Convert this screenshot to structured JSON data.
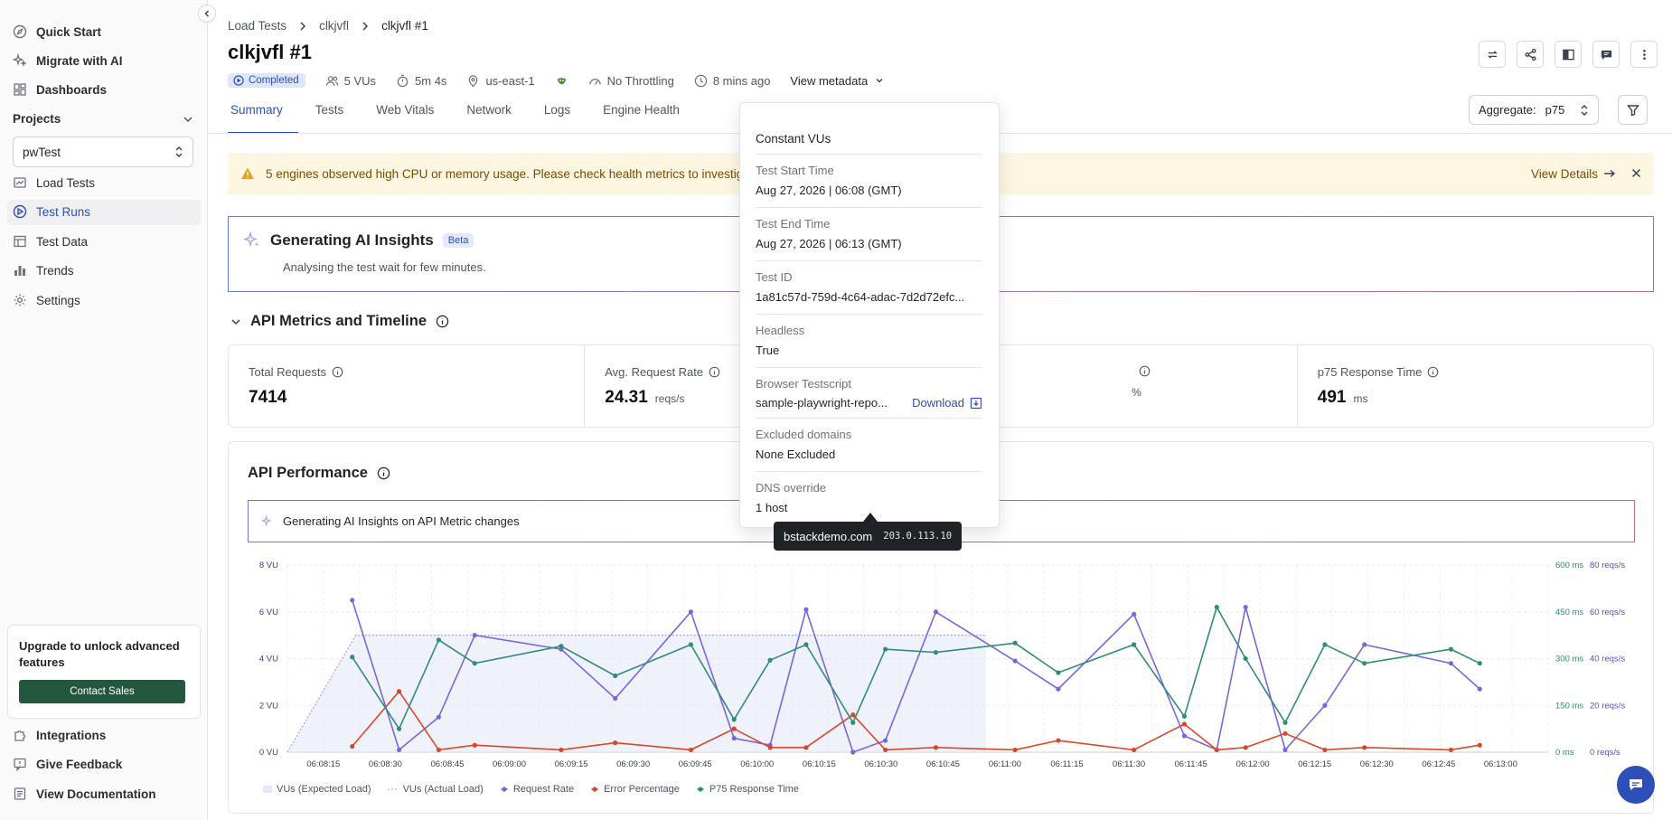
{
  "sidebar": {
    "top_items": [
      {
        "label": "Quick Start",
        "icon": "compass-icon"
      },
      {
        "label": "Migrate with AI",
        "icon": "sparkle-icon"
      },
      {
        "label": "Dashboards",
        "icon": "dashboard-icon"
      }
    ],
    "projects_heading": "Projects",
    "project_select": "pwTest",
    "project_items": [
      {
        "label": "Load Tests",
        "icon": "chart-icon"
      },
      {
        "label": "Test Runs",
        "icon": "run-icon"
      },
      {
        "label": "Test Data",
        "icon": "table-icon"
      },
      {
        "label": "Trends",
        "icon": "bar-icon"
      },
      {
        "label": "Settings",
        "icon": "gear-icon"
      }
    ],
    "upgrade_text": "Upgrade to unlock advanced features",
    "contact_sales": "Contact Sales",
    "bottom_items": [
      {
        "label": "Integrations",
        "icon": "puzzle-icon"
      },
      {
        "label": "Give Feedback",
        "icon": "feedback-icon"
      },
      {
        "label": "View Documentation",
        "icon": "doc-icon"
      }
    ]
  },
  "header": {
    "breadcrumb": [
      "Load Tests",
      "clkjvfl",
      "clkjvfl #1"
    ],
    "title": "clkjvfl #1",
    "status": "Completed",
    "vus": "5 VUs",
    "duration": "5m 4s",
    "region": "us-east-1",
    "throttling": "No Throttling",
    "time_ago": "8 mins ago",
    "view_metadata": "View metadata"
  },
  "tabs": [
    "Summary",
    "Tests",
    "Web Vitals",
    "Network",
    "Logs",
    "Engine Health"
  ],
  "aggregate": {
    "label": "Aggregate:",
    "value": "p75"
  },
  "alert": {
    "text": "5 engines observed high CPU or memory usage. Please check health metrics to investigate.",
    "action": "View Details"
  },
  "ai_insights": {
    "title": "Generating AI Insights",
    "badge": "Beta",
    "subtitle": "Analysing the test wait for few minutes."
  },
  "api_metrics": {
    "title": "API Metrics and Timeline",
    "cards": [
      {
        "label": "Total Requests",
        "value": "7414",
        "unit": ""
      },
      {
        "label": "Avg. Request Rate",
        "value": "24.31",
        "unit": "reqs/s"
      },
      {
        "label": "",
        "value": "",
        "unit": "%"
      },
      {
        "label": "p75 Response Time",
        "value": "491",
        "unit": "ms"
      }
    ]
  },
  "api_performance": {
    "title": "API Performance",
    "ai_text": "Generating AI Insights on API Metric changes"
  },
  "metadata_popover": {
    "load_type": "Constant VUs",
    "rows": [
      {
        "label": "Test Start Time",
        "value": "Aug 27, 2026 | 06:08 (GMT)"
      },
      {
        "label": "Test End Time",
        "value": "Aug 27, 2026 | 06:13 (GMT)"
      },
      {
        "label": "Test ID",
        "value": "1a81c57d-759d-4c64-adac-7d2d72efc..."
      },
      {
        "label": "Headless",
        "value": "True"
      }
    ],
    "testscript_label": "Browser Testscript",
    "testscript_file": "sample-playwright-repo...",
    "download": "Download",
    "rows2": [
      {
        "label": "Excluded domains",
        "value": "None Excluded"
      },
      {
        "label": "DNS override",
        "value": "1 host"
      }
    ],
    "tooltip_host": "bstackdemo.com",
    "tooltip_ip": "203.0.113.10"
  },
  "chart_data": {
    "type": "line",
    "x": [
      "06:08:15",
      "06:08:30",
      "06:08:45",
      "06:09:00",
      "06:09:15",
      "06:09:30",
      "06:09:45",
      "06:10:00",
      "06:10:15",
      "06:10:30",
      "06:10:45",
      "06:11:00",
      "06:11:15",
      "06:11:30",
      "06:11:45",
      "06:12:00",
      "06:12:15",
      "06:12:30",
      "06:12:45",
      "06:13:00"
    ],
    "y_left": {
      "ticks": [
        "0 VU",
        "2 VU",
        "4 VU",
        "6 VU",
        "8 VU"
      ],
      "range": [
        0,
        8
      ]
    },
    "y_right1": {
      "ticks": [
        "0 ms",
        "150 ms",
        "300 ms",
        "450 ms",
        "600 ms"
      ],
      "range": [
        0,
        600
      ]
    },
    "y_right2": {
      "ticks": [
        "0 reqs/s",
        "20 reqs/s",
        "40 reqs/s",
        "60 reqs/s",
        "80 reqs/s"
      ],
      "range": [
        0,
        80
      ]
    },
    "series": [
      {
        "name": "VUs (Expected Load)",
        "color": "#e4e7f8",
        "axis": "vu",
        "points": [
          [
            0,
            0
          ],
          [
            1.9,
            5
          ],
          [
            6.1,
            5
          ],
          [
            18.2,
            5
          ],
          [
            19.4,
            5
          ],
          [
            19.4,
            0
          ]
        ]
      },
      {
        "name": "VUs (Actual Load)",
        "color": "#9ea6d9",
        "axis": "vu",
        "points": [
          [
            0,
            0
          ],
          [
            1.9,
            5
          ],
          [
            19.4,
            5
          ]
        ]
      },
      {
        "name": "Request Rate",
        "color": "#7b66d9",
        "axis": "reqs",
        "points": [
          [
            1.8,
            65
          ],
          [
            3.1,
            1
          ],
          [
            4.2,
            15
          ],
          [
            5.2,
            50
          ],
          [
            7.6,
            44
          ],
          [
            9.1,
            23
          ],
          [
            11.2,
            60
          ],
          [
            12.4,
            6
          ],
          [
            13.4,
            3
          ],
          [
            14.4,
            61
          ],
          [
            15.7,
            0
          ],
          [
            16.6,
            5
          ],
          [
            18.0,
            60
          ],
          [
            20.2,
            39
          ],
          [
            21.4,
            27
          ],
          [
            23.5,
            59
          ],
          [
            24.9,
            7
          ],
          [
            25.8,
            1
          ],
          [
            26.6,
            62
          ],
          [
            27.7,
            1
          ],
          [
            28.8,
            20
          ],
          [
            29.9,
            46
          ],
          [
            32.3,
            38
          ],
          [
            33.1,
            27
          ]
        ]
      },
      {
        "name": "Error Percentage",
        "color": "#d9472b",
        "axis": "reqs",
        "points": [
          [
            1.8,
            2.5
          ],
          [
            3.1,
            26
          ],
          [
            4.2,
            1
          ],
          [
            5.2,
            3
          ],
          [
            7.6,
            1
          ],
          [
            9.1,
            4
          ],
          [
            11.2,
            1
          ],
          [
            12.4,
            10
          ],
          [
            13.4,
            2
          ],
          [
            14.4,
            2
          ],
          [
            15.7,
            16
          ],
          [
            16.6,
            1
          ],
          [
            18.0,
            2
          ],
          [
            20.2,
            1
          ],
          [
            21.4,
            5
          ],
          [
            23.5,
            1
          ],
          [
            24.9,
            12
          ],
          [
            25.8,
            1
          ],
          [
            26.6,
            2
          ],
          [
            27.7,
            8
          ],
          [
            28.8,
            1
          ],
          [
            29.9,
            2
          ],
          [
            32.3,
            1
          ],
          [
            33.1,
            3
          ]
        ]
      },
      {
        "name": "P75 Response Time",
        "color": "#2f8c77",
        "axis": "ms",
        "points": [
          [
            1.8,
            305
          ],
          [
            3.1,
            75
          ],
          [
            4.2,
            360
          ],
          [
            5.2,
            285
          ],
          [
            7.6,
            340
          ],
          [
            9.1,
            245
          ],
          [
            11.2,
            345
          ],
          [
            12.4,
            105
          ],
          [
            13.4,
            295
          ],
          [
            14.4,
            345
          ],
          [
            15.7,
            95
          ],
          [
            16.6,
            330
          ],
          [
            18.0,
            320
          ],
          [
            20.2,
            350
          ],
          [
            21.4,
            255
          ],
          [
            23.5,
            345
          ],
          [
            24.9,
            115
          ],
          [
            25.8,
            465
          ],
          [
            26.6,
            300
          ],
          [
            27.7,
            95
          ],
          [
            28.8,
            345
          ],
          [
            29.9,
            285
          ],
          [
            32.3,
            330
          ],
          [
            33.1,
            285
          ]
        ]
      }
    ]
  },
  "colors": {
    "accent": "#2c4fb8",
    "success": "#23573f",
    "warning_bg": "#fdf7e2"
  }
}
